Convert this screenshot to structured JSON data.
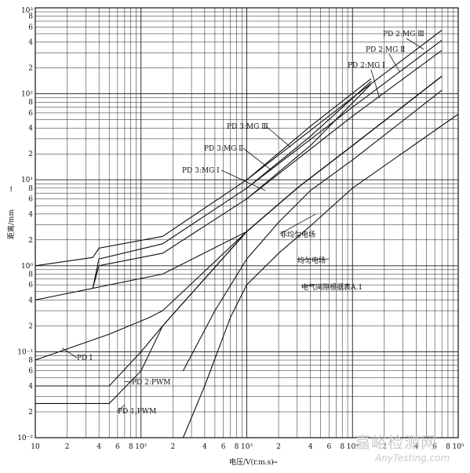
{
  "chart_data": {
    "type": "line",
    "x_scale": "log",
    "y_scale": "log",
    "xlim": [
      10,
      100000
    ],
    "ylim": [
      0.01,
      1000
    ],
    "grid": true,
    "xlabel": "电压/V(r.m.s)",
    "ylabel": "距离/mm",
    "x_ticks": [
      "10",
      "2",
      "4",
      "6",
      "8",
      "10²",
      "2",
      "4",
      "6",
      "8",
      "10³",
      "2",
      "4",
      "6",
      "8",
      "10⁴",
      "2",
      "4",
      "6",
      "8",
      "10⁵"
    ],
    "y_ticks": [
      "10⁻²",
      "2",
      "4",
      "6",
      "8",
      "10⁻¹",
      "2",
      "4",
      "6",
      "8",
      "10⁰",
      "2",
      "4",
      "6",
      "8",
      "10¹",
      "2",
      "4",
      "6",
      "8",
      "10²",
      "2",
      "4",
      "6",
      "8",
      "10³"
    ],
    "series": [
      {
        "name": "PD 1",
        "points": [
          [
            10,
            0.08
          ],
          [
            50,
            0.16
          ],
          [
            120,
            0.25
          ],
          [
            160,
            0.3
          ],
          [
            1000,
            2.5
          ],
          [
            3000,
            8
          ],
          [
            10000,
            25
          ],
          [
            70000,
            160
          ]
        ]
      },
      {
        "name": "PD 2:PWM",
        "points": [
          [
            10,
            0.04
          ],
          [
            50,
            0.04
          ],
          [
            100,
            0.1
          ],
          [
            160,
            0.2
          ],
          [
            1000,
            2.5
          ],
          [
            3000,
            8
          ],
          [
            10000,
            25
          ],
          [
            70000,
            160
          ]
        ]
      },
      {
        "name": "PD 1,PWM",
        "points": [
          [
            10,
            0.025
          ],
          [
            50,
            0.025
          ],
          [
            100,
            0.06
          ],
          [
            160,
            0.2
          ],
          [
            1000,
            2.5
          ],
          [
            3000,
            8
          ],
          [
            10000,
            25
          ],
          [
            70000,
            160
          ]
        ]
      },
      {
        "name": "均匀电场",
        "points": [
          [
            250,
            0.01
          ],
          [
            400,
            0.04
          ],
          [
            700,
            0.25
          ],
          [
            1000,
            0.6
          ],
          [
            2000,
            1.4
          ],
          [
            4000,
            2.9
          ],
          [
            10000,
            8
          ],
          [
            100000,
            58
          ]
        ]
      },
      {
        "name": "非均匀电场",
        "points": [
          [
            250,
            0.06
          ],
          [
            500,
            0.3
          ],
          [
            1000,
            1.2
          ],
          [
            2000,
            3.2
          ],
          [
            4000,
            7.5
          ],
          [
            10000,
            17
          ],
          [
            70000,
            110
          ]
        ]
      },
      {
        "name": "电气间隙根据表A.1",
        "points": [
          [
            10,
            0.4
          ],
          [
            160,
            0.8
          ],
          [
            1000,
            2.5
          ],
          [
            3000,
            8
          ],
          [
            10000,
            25
          ],
          [
            70000,
            160
          ]
        ]
      },
      {
        "name": "PD 3:MG Ⅰ",
        "points": [
          [
            35,
            0.55
          ],
          [
            40,
            1.0
          ],
          [
            160,
            1.4
          ],
          [
            1000,
            6
          ],
          [
            4000,
            25
          ],
          [
            15000,
            130
          ]
        ]
      },
      {
        "name": "PD 3:MG Ⅱ",
        "points": [
          [
            35,
            0.55
          ],
          [
            40,
            1.2
          ],
          [
            160,
            1.8
          ],
          [
            1000,
            8
          ],
          [
            4000,
            32
          ],
          [
            15000,
            140
          ]
        ]
      },
      {
        "name": "PD 3:MG Ⅲ",
        "points": [
          [
            10,
            1.0
          ],
          [
            35,
            1.25
          ],
          [
            40,
            1.6
          ],
          [
            160,
            2.2
          ],
          [
            1000,
            10
          ],
          [
            4000,
            42
          ],
          [
            15000,
            150
          ]
        ]
      },
      {
        "name": "PD 2:MG Ⅰ",
        "points": [
          [
            1000,
            6
          ],
          [
            10000,
            55
          ],
          [
            70000,
            320
          ]
        ]
      },
      {
        "name": "PD 2:MG Ⅱ",
        "points": [
          [
            1000,
            8
          ],
          [
            10000,
            70
          ],
          [
            70000,
            420
          ]
        ]
      },
      {
        "name": "PD 2:MG Ⅲ",
        "points": [
          [
            1000,
            10
          ],
          [
            10000,
            90
          ],
          [
            70000,
            550
          ]
        ]
      }
    ],
    "annotations": [
      {
        "text": "PD 2:MG Ⅲ",
        "target": [
          47000,
          330
        ]
      },
      {
        "text": "PD 2:MG Ⅱ",
        "target": [
          28000,
          180
        ]
      },
      {
        "text": "PD 2:MG Ⅰ",
        "target": [
          18000,
          90
        ]
      },
      {
        "text": "PD 3:MG Ⅲ",
        "target": [
          2600,
          24
        ]
      },
      {
        "text": "PD 3:MG Ⅱ",
        "target": [
          1700,
          13
        ]
      },
      {
        "text": "PD 3:MG Ⅰ",
        "target": [
          1500,
          7.5
        ]
      },
      {
        "text": "非均匀电场",
        "target": [
          4500,
          4
        ]
      },
      {
        "text": "均匀电场",
        "target": [
          6000,
          1.2
        ]
      },
      {
        "text": "电气间隙根据表A.1",
        "target": [
          4500,
          0.6
        ]
      },
      {
        "text": "PD Ⅰ",
        "target": [
          18,
          0.11
        ]
      },
      {
        "text": "PD 2:PWM",
        "target": [
          70,
          0.045
        ]
      },
      {
        "text": "PD 1,PWM",
        "target": [
          70,
          0.024
        ]
      }
    ]
  },
  "watermark": {
    "cn": "嘉峪检测网",
    "en": "AnyTesting.com"
  }
}
